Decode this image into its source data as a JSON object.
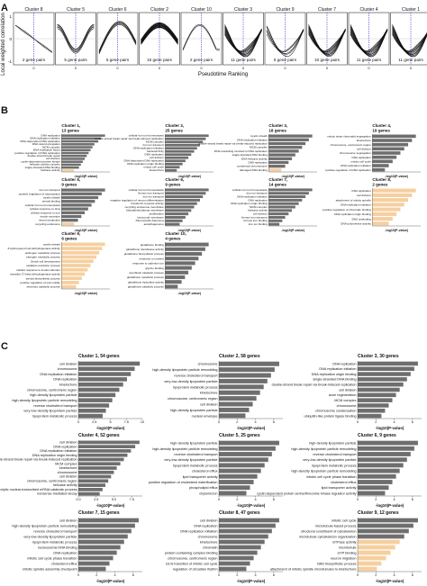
{
  "panel_letters": [
    "A",
    "B",
    "C"
  ],
  "chart_data": [
    {
      "panel": "A",
      "type": "line",
      "ylabel": "Local weighted correlation",
      "xlabel": "Pseudotime Ranking",
      "ylim": [
        -1,
        1
      ],
      "yticks": [
        "1",
        "0",
        "-1"
      ],
      "xtick": "0",
      "clusters": [
        {
          "title": "Cluster 8",
          "footer": "2 gene pairs",
          "n": 2,
          "shape": "down"
        },
        {
          "title": "Cluster 5",
          "footer": "5 gene pairs",
          "n": 5,
          "shape": "down-up"
        },
        {
          "title": "Cluster 6",
          "footer": "5 gene pairs",
          "n": 5,
          "shape": "up"
        },
        {
          "title": "Cluster 2",
          "footer": "15 gene pairs",
          "n": 15,
          "shape": "up-down"
        },
        {
          "title": "Cluster 10",
          "footer": "2 gene pairs",
          "n": 2,
          "shape": "up-flat"
        },
        {
          "title": "Cluster 3",
          "footer": "11 gene pairs",
          "n": 11,
          "shape": "dip"
        },
        {
          "title": "Cluster 9",
          "footer": "5 gene pairs",
          "n": 5,
          "shape": "dip"
        },
        {
          "title": "Cluster 7",
          "footer": "10 gene pairs",
          "n": 10,
          "shape": "dip"
        },
        {
          "title": "Cluster 4",
          "footer": "11 gene pairs",
          "n": 11,
          "shape": "dip"
        },
        {
          "title": "Cluster 1",
          "footer": "11 gene pairs",
          "n": 11,
          "shape": "dip"
        }
      ]
    },
    {
      "panel": "B",
      "type": "bar",
      "orientation": "horizontal",
      "xlabel": "-log10(P-value)",
      "colors": {
        "bar": "#6e6e6e",
        "highlight": "#f6cf9f"
      },
      "clusters": [
        {
          "title": "Cluster 1,",
          "subtitle": "13 genes",
          "terms": [
            "DNA replication",
            "DNA replication initiation",
            "DNA-dependent DNA replication",
            "DNA strand elongation",
            "MCM complex",
            "DNA replication factor",
            "positive regulation of DNA replication",
            "double-strand break repair",
            "cell division",
            "cyclin-dependent protein kinase",
            "helicase activity complex",
            "single-stranded DNA binding",
            "helicase activity"
          ],
          "values": [
            9,
            8.2,
            7.6,
            6.8,
            6.4,
            6,
            5.6,
            5.2,
            4.8,
            4.4,
            4,
            3.6,
            2.6
          ],
          "highlight": [
            12
          ]
        },
        {
          "title": "Cluster 2,",
          "subtitle": "25 genes",
          "terms": [
            "cellular iron ion homeostasis",
            "double-strand break repair via break-induced replication",
            "MCM complex",
            "iron ion transport",
            "DNA replication initiation",
            "bacterial fixity",
            "DNA replication",
            "cell division",
            "DNA-dependent DNA replication",
            "DNA replication origin binding",
            "mitotic cell cycle",
            "kinetochore"
          ],
          "values": [
            9,
            8.4,
            7.8,
            7.2,
            6.6,
            6,
            5.4,
            4.8,
            4.2,
            3.6,
            3,
            2.4
          ],
          "highlight": []
        },
        {
          "title": "Cluster 3,",
          "subtitle": "18 genes",
          "terms": [
            "myelin sheath",
            "DNA replication initiation",
            "double-strand break repair via break-induced replication",
            "MCM complex",
            "DNA unwinding involved in DNA replication",
            "single-stranded DNA binding",
            "DNA helicase activity",
            "DNA replication",
            "condensed chromosome",
            "damaged DNA binding"
          ],
          "values": [
            9,
            8.3,
            7.6,
            6.9,
            6.2,
            5.5,
            4.8,
            4.1,
            3.4,
            2.6
          ],
          "highlight": [
            9
          ]
        },
        {
          "title": "Cluster 4,",
          "subtitle": "19 genes",
          "terms": [
            "mitotic sister chromatid segregation",
            "kinetochore",
            "chromosome, centromeric region",
            "cell division",
            "chromosome segregation",
            "DNA replication",
            "mitotic cell cycle",
            "DNA replication initiation",
            "positive regulation of DNA replication"
          ],
          "values": [
            9,
            8.2,
            7.4,
            6.6,
            5.8,
            5,
            4.2,
            3.4,
            2.6
          ],
          "highlight": []
        },
        {
          "title": "Cluster 5,",
          "subtitle": "9 genes",
          "terms": [
            "iron ion transport",
            "positive regulation of transcription",
            "myelin sheath",
            "steroid binding",
            "cellular iron ion homeostasis",
            "cellular response to drug",
            "cellular response to iron",
            "insulin secretion",
            "neuron projection",
            "recycling endosome"
          ],
          "values": [
            9,
            8.3,
            7.6,
            6.9,
            6.2,
            5.5,
            4.8,
            4.1,
            3.4,
            2.6
          ],
          "highlight": [
            9
          ]
        },
        {
          "title": "Cluster 6,",
          "subtitle": "9 genes",
          "terms": [
            "cellular iron ion homeostasis",
            "ferrous iron transport",
            "iron ion transport",
            "negative regulation of neuron differentiation",
            "transferrin receptor activity",
            "recycling endosome membrane",
            "basolateral plasma membrane",
            "proliferation",
            "lysosomal membrane",
            "Pleomorphic Adenoma",
            "autophagosome"
          ],
          "values": [
            9,
            8.4,
            7.8,
            7.2,
            6.6,
            6,
            5.4,
            4.8,
            4.2,
            3.6,
            3
          ],
          "highlight": []
        },
        {
          "title": "Cluster 7,",
          "subtitle": "14 genes",
          "terms": [
            "cellular iron ion homeostasis",
            "iron ion transport",
            "DNA replication initiation",
            "DNA replication",
            "DNA replication origin binding",
            "MCM complex",
            "helicase activity",
            "cell division",
            "ferrous iron transport",
            "ferrous iron binding",
            "iron ion binding"
          ],
          "values": [
            9,
            8.3,
            7.6,
            6.9,
            6.2,
            5.5,
            4.8,
            4.1,
            3.4,
            2.8,
            2.2
          ],
          "highlight": []
        },
        {
          "title": "Cluster 8,",
          "subtitle": "2 genes",
          "terms": [
            "DNA replication",
            "cell division",
            "attachment of mitotic spindle",
            "DNA replication initiation",
            "positive regulation of chromatin binding",
            "DNA replication origin binding",
            "DNA unwinding",
            "DNA polymerase activity"
          ],
          "values": [
            9,
            8.2,
            7.4,
            6.6,
            5.8,
            5,
            4.2,
            3.4
          ],
          "highlight": [
            0,
            1,
            2,
            3,
            4,
            5,
            6,
            7
          ]
        },
        {
          "title": "Cluster 9,",
          "subtitle": "6 genes",
          "terms": [
            "myelin sheath",
            "3-hydroxyacyl-CoA dehydrogenase activity",
            "androgen metabolic process",
            "estrogen metabolic process",
            "Sertoli cell development",
            "oxidation-reduction process",
            "cellular response to insulin stimulus",
            "estradiol 17-beta-dehydrogenase activity",
            "steroid biosynthetic process",
            "positive regulation of cell motility",
            "secretory catabolic process"
          ],
          "values": [
            9,
            8.4,
            7.8,
            7.2,
            6.6,
            6,
            5.4,
            4.8,
            4.2,
            3.6,
            3
          ],
          "highlight": [
            0,
            1,
            2,
            3,
            4,
            5,
            6,
            7,
            8,
            9,
            10
          ]
        },
        {
          "title": "Cluster 10,",
          "subtitle": "4 genes",
          "terms": [
            "glutathione binding",
            "glutathione transferase activity",
            "glutathione biosynthetic process",
            "response to nutrient",
            "response to cadmium ion",
            "glycine binding",
            "xenobiotic catabolic process",
            "glutathione metabolic process",
            "glutathione hydrolase activity",
            "glutathione catabolic process"
          ],
          "values": [
            9,
            8.3,
            7.6,
            6.9,
            6.2,
            5.5,
            4.8,
            4.1,
            3.4,
            2.6
          ],
          "highlight": []
        }
      ]
    },
    {
      "panel": "C",
      "type": "bar",
      "orientation": "horizontal",
      "xlabel": "-log10(P-value)",
      "colors": {
        "bar": "#6e6e6e",
        "highlight": "#f6cf9f"
      },
      "clusters": [
        {
          "title": "Cluster 1, 54 genes",
          "xticks": [
            "0",
            "2.5",
            "5",
            "7.5",
            "10"
          ],
          "xmax": 10,
          "terms": [
            "cell division",
            "chromosome",
            "DNA replication initiation",
            "DNA replication",
            "kinetochore",
            "chromosome, centromeric region",
            "high-density lipoprotein particle",
            "high-density lipoprotein particle remodeling",
            "reverse cholesterol transport",
            "very-low-density lipoprotein particle",
            "lipoprotein metabolic process"
          ],
          "values": [
            9.6,
            8.8,
            8.2,
            7.6,
            7,
            6.4,
            5.8,
            5.3,
            4.8,
            4.3,
            3.8
          ],
          "highlight": []
        },
        {
          "title": "Cluster 2, 58 genes",
          "xticks": [
            "0",
            "2",
            "4",
            "6"
          ],
          "xmax": 7,
          "terms": [
            "chromosome",
            "high-density lipoprotein particle remodeling",
            "reverse cholesterol transport",
            "very-low-density lipoprotein particle",
            "lipoprotein metabolic process",
            "kinetochore",
            "chromosome, centromeric region",
            "cell division",
            "high-density lipoprotein particle",
            "nuclear envelope"
          ],
          "values": [
            6.6,
            6.1,
            5.7,
            5.3,
            4.9,
            4.5,
            4.1,
            3.7,
            3.3,
            2.9
          ],
          "highlight": []
        },
        {
          "title": "Cluster 3, 30 genes",
          "xticks": [
            "0",
            "2",
            "4",
            "6"
          ],
          "xmax": 7,
          "terms": [
            "DNA replication",
            "DNA replication initiation",
            "DNA replication origin binding",
            "single-stranded DNA binding",
            "double-strand break repair via break-induced replication",
            "cell division",
            "axon regeneration",
            "MCM complex",
            "chromosome",
            "chromosome condensation",
            "ubiquitin-like protein ligase binding"
          ],
          "values": [
            6.6,
            6.2,
            5.8,
            5.4,
            5,
            4.6,
            4.2,
            3.8,
            3.4,
            3,
            2.6
          ],
          "highlight": []
        },
        {
          "title": "Cluster 4, 52 genes",
          "xticks": [
            "0.0",
            "2.5",
            "5.0",
            "7.5"
          ],
          "xmax": 9,
          "terms": [
            "cell division",
            "DNA replication",
            "DNA replication initiation",
            "DNA replication origin binding",
            "double-strand break repair via break-induced replication",
            "MCM complex",
            "kinetochore",
            "chromosome",
            "cell division",
            "chromosome, centromeric region",
            "helicase activity",
            "exonucleolytic nuclear-transcribed mRNA catabolic process",
            "nonsense-mediated decay"
          ],
          "values": [
            8.6,
            8,
            7.4,
            6.9,
            6.4,
            5.9,
            5.4,
            5,
            4.6,
            4.2,
            3.8,
            3.4,
            3
          ],
          "highlight": []
        },
        {
          "title": "Cluster 5, 25 genes",
          "xticks": [
            "0",
            "2",
            "4",
            "6"
          ],
          "xmax": 7,
          "terms": [
            "high-density lipoprotein particle",
            "high-density lipoprotein particle remodeling",
            "reverse cholesterol transport",
            "very-low-density lipoprotein particle",
            "lipoprotein metabolic process",
            "cholesterol efflux",
            "lipid transporter activity",
            "positive regulation of cholesterol esterification",
            "phospholipid efflux",
            "chylomicron"
          ],
          "values": [
            6.6,
            6.2,
            5.8,
            5.4,
            5,
            4.6,
            4.2,
            3.8,
            3.4,
            3
          ],
          "highlight": []
        },
        {
          "title": "Cluster 6, 9 genes",
          "xticks": [
            "0",
            "2",
            "4",
            "6"
          ],
          "xmax": 7,
          "terms": [
            "high-density lipoprotein particle",
            "high-density lipoprotein particle remodeling",
            "reverse cholesterol transport",
            "very-low-density lipoprotein particle",
            "lipoprotein metabolic process",
            "high-density lipoprotein particle remodeling",
            "mitotic cell cycle phase transition",
            "cholesterol efflux",
            "lipid transporter activity",
            "cyclin-dependent protein serine/threonine kinase regulator activity"
          ],
          "values": [
            6.6,
            6.2,
            5.8,
            5.4,
            5,
            4.6,
            4.2,
            3.8,
            3.4,
            3
          ],
          "highlight": []
        },
        {
          "title": "Cluster 7, 15 genes",
          "xticks": [
            "0",
            "2",
            "4",
            "6"
          ],
          "xmax": 7,
          "terms": [
            "cell division",
            "high-density lipoprotein particle remodeling",
            "reverse cholesterol transport",
            "very-low-density lipoprotein particle",
            "lipoprotein metabolic process",
            "nucleosomal DNA binding",
            "DNA replication",
            "mitotic cell cycle phase transition",
            "cholesterol efflux",
            "mitotic spindle assembly checkpoint"
          ],
          "values": [
            6.6,
            6.2,
            5.8,
            5.4,
            5,
            4.6,
            4.2,
            3.8,
            3.4,
            3
          ],
          "highlight": []
        },
        {
          "title": "Cluster 8, 47 genes",
          "xticks": [
            "0",
            "2",
            "4",
            "6"
          ],
          "xmax": 7,
          "terms": [
            "cell division",
            "DNA replication",
            "DNA replication initiation",
            "chromosome",
            "kinetochore",
            "chromatin",
            "protein-containing complex binding",
            "chromosome, centromeric region",
            "G1/S transition of mitotic cell cycle",
            "regulation of circadian rhythm"
          ],
          "values": [
            6.6,
            6.2,
            5.8,
            5.4,
            5,
            4.6,
            4.2,
            3.8,
            3.4,
            3
          ],
          "highlight": []
        },
        {
          "title": "Cluster 9, 12 genes",
          "xticks": [
            "0",
            "2",
            "4",
            "6"
          ],
          "xmax": 7,
          "terms": [
            "mitotic cell cycle",
            "microtubule-based process",
            "structural constituent of cytoskeleton",
            "microtubule cytoskeleton organization",
            "GTPase activity",
            "microtubule",
            "GTP binding",
            "neuron migration",
            "NAD biosynthetic process",
            "attachment of mitotic spindle microtubules to kinetochore"
          ],
          "values": [
            6.6,
            6.1,
            5.6,
            5.1,
            4.6,
            4.1,
            3.6,
            3.1,
            2.6,
            2.1
          ],
          "highlight": [
            4,
            5,
            6,
            7,
            8,
            9
          ]
        }
      ]
    }
  ]
}
